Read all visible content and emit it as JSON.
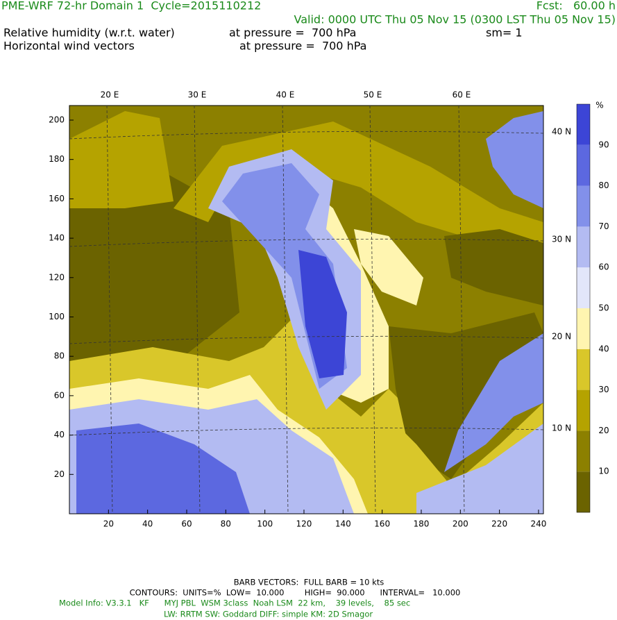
{
  "header": {
    "title": "PME-WRF 72-hr Domain 1  Cycle=2015110212",
    "forecast": "Fcst:   60.00 h",
    "valid": "Valid: 0000 UTC Thu 05 Nov 15 (0300 LST Thu 05 Nov 15)",
    "field1": {
      "name": "Relative humidity (w.r.t. water)",
      "level": "at pressure =  700 hPa",
      "smoothing": "sm= 1"
    },
    "field2": {
      "name": "Horizontal wind vectors",
      "level": "at pressure =  700 hPa"
    }
  },
  "map": {
    "xlim": [
      0,
      242.5
    ],
    "ylim": [
      0,
      207.4
    ],
    "xticks": [
      20,
      40,
      60,
      80,
      100,
      120,
      140,
      160,
      180,
      200,
      220,
      240
    ],
    "yticks": [
      20,
      40,
      60,
      80,
      100,
      120,
      140,
      160,
      180,
      200
    ],
    "lon_labels": [
      "20 E",
      "30 E",
      "40 E",
      "50 E",
      "60 E"
    ],
    "lat_labels": [
      "40 N",
      "30 N",
      "20 N",
      "10 N"
    ]
  },
  "colorbar": {
    "unit": "%",
    "levels": [
      10,
      20,
      30,
      40,
      50,
      60,
      70,
      80,
      90
    ],
    "colors": [
      "#6b6300",
      "#8c8000",
      "#b5a300",
      "#d9c72a",
      "#fff5b0",
      "#e2e6fa",
      "#b3bbf2",
      "#8290ea",
      "#5c68e0",
      "#3c45d6"
    ]
  },
  "footer": {
    "barbs": "BARB VECTORS:  FULL BARB = 10 kts",
    "contours": "CONTOURS:  UNITS=%  LOW=  10.000        HIGH=  90.000      INTERVAL=   10.000",
    "model_info": "Model Info: V3.3.1   KF      MYJ PBL  WSM 3class  Noah LSM  22 km,    39 levels,    85 sec",
    "physics": "LW: RRTM SW: Goddard DIFF: simple KM: 2D Smagor"
  }
}
